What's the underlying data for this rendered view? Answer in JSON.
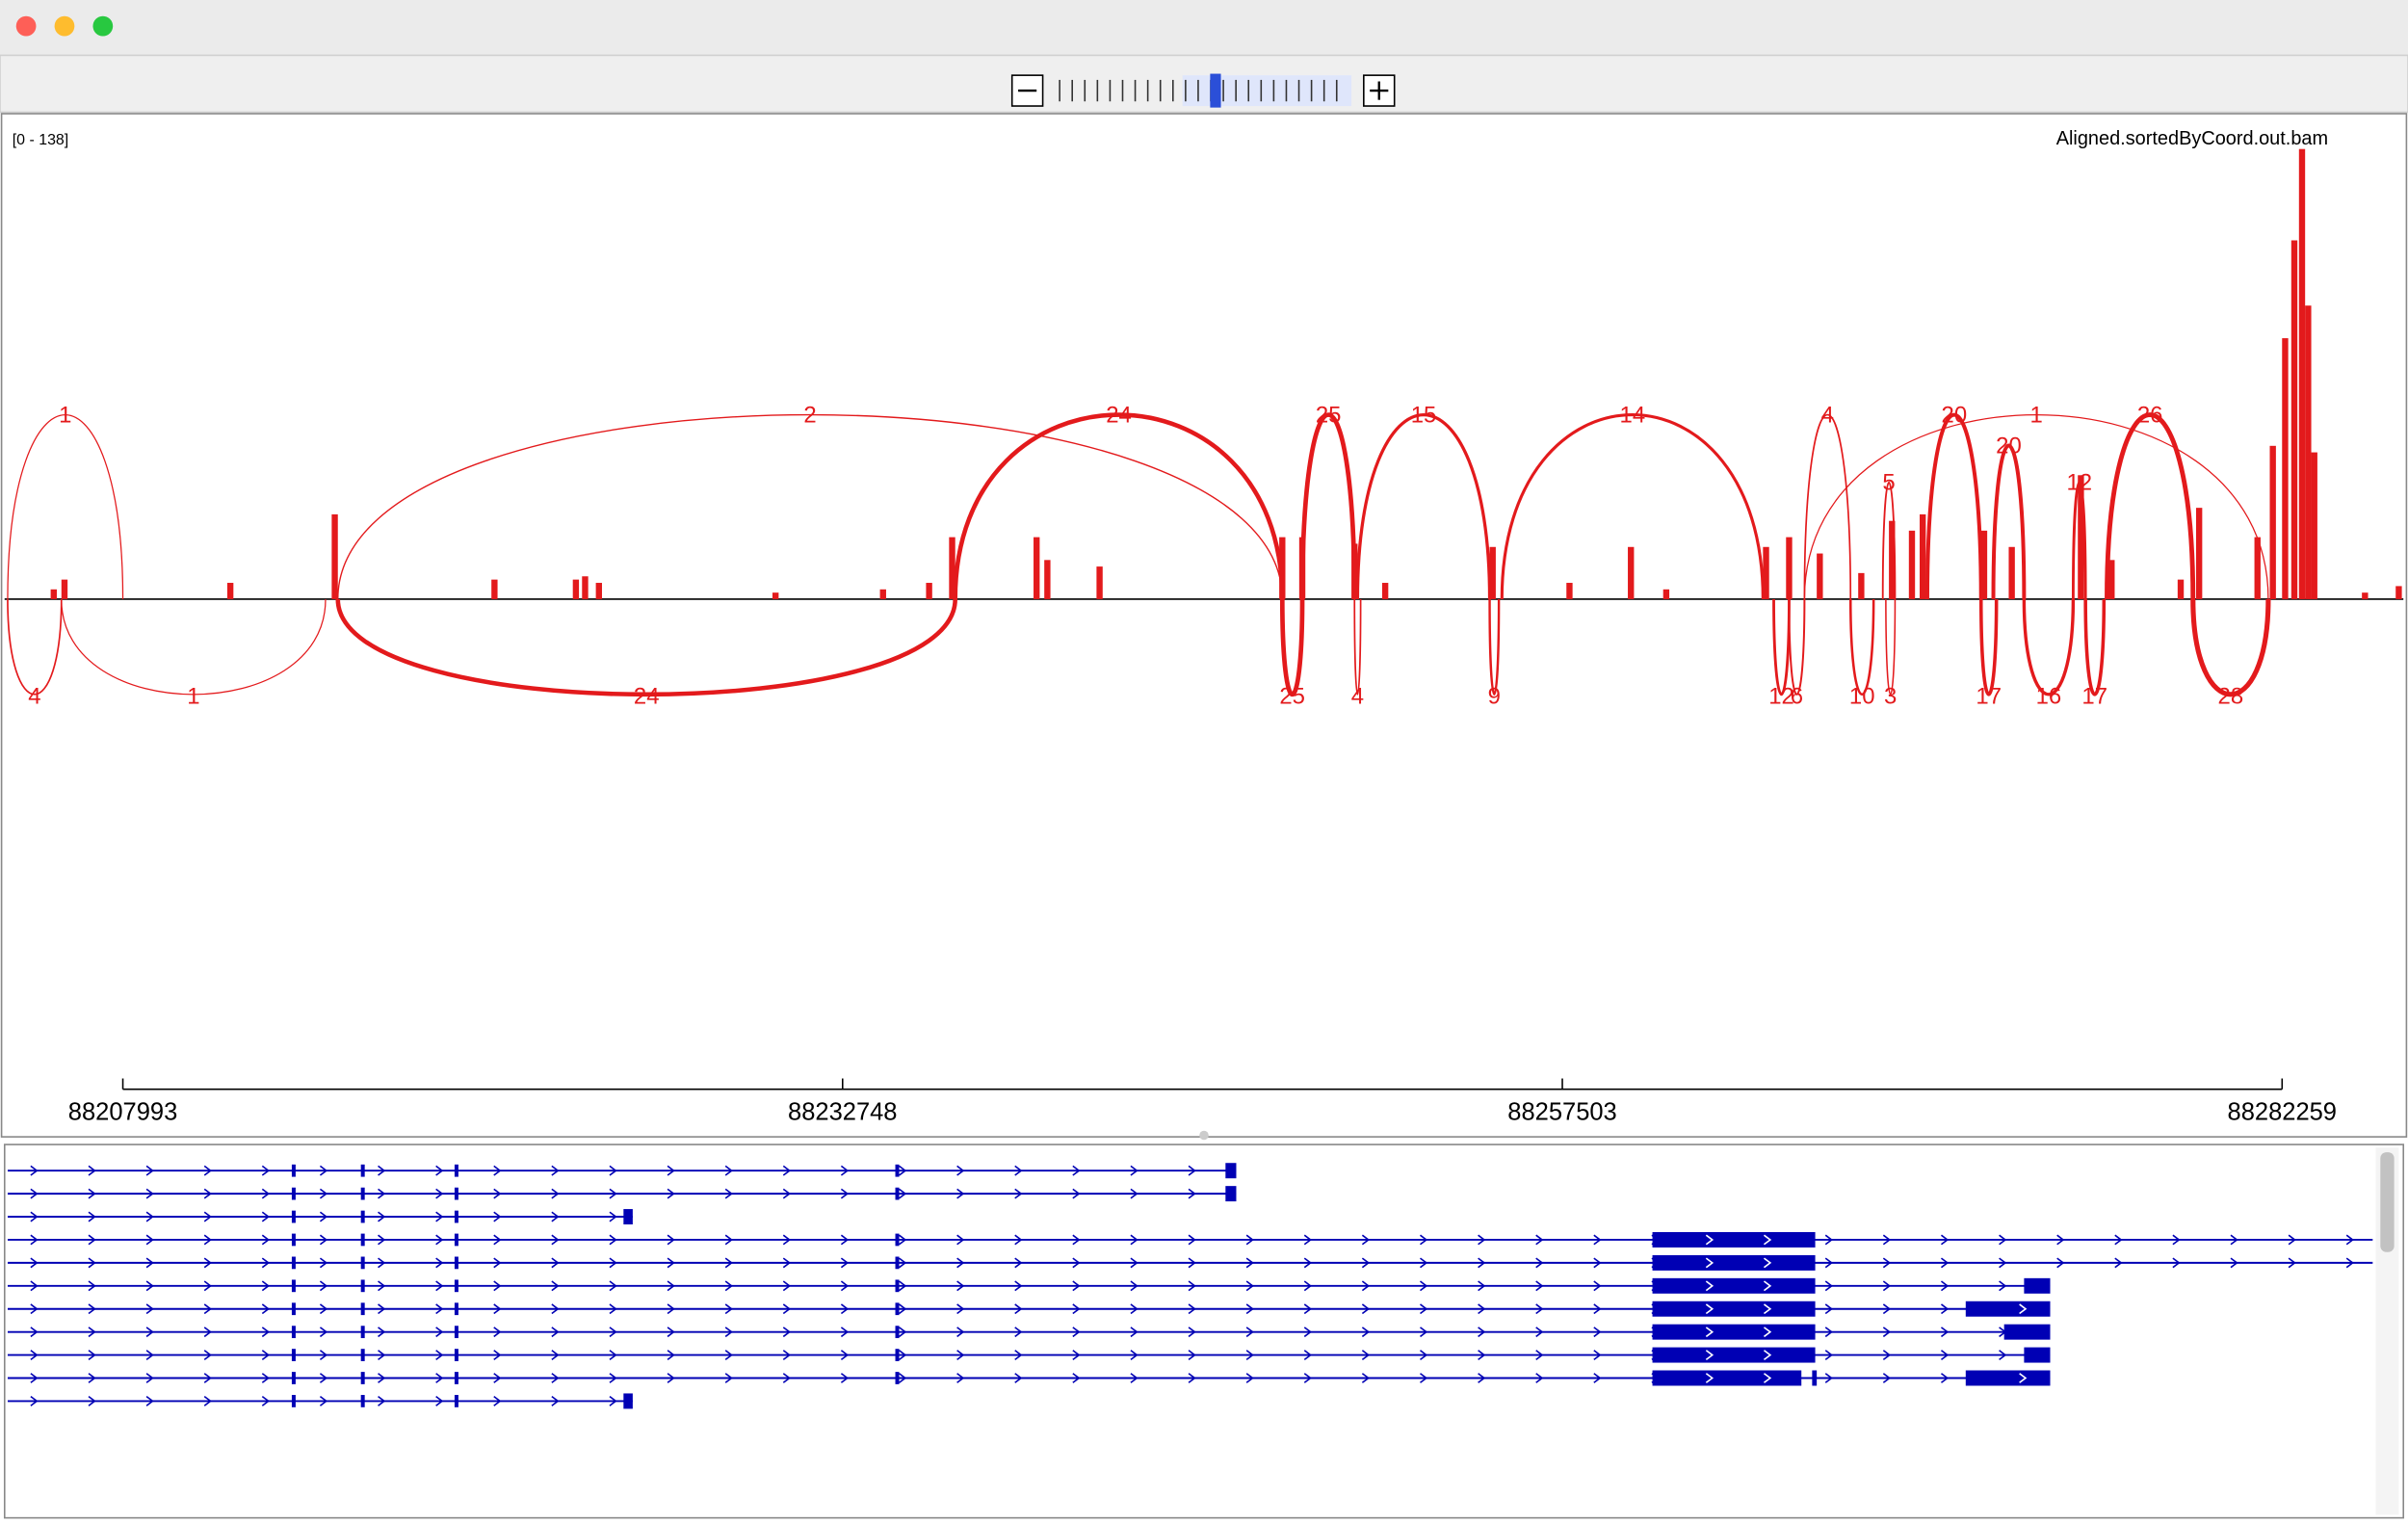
{
  "track": {
    "name": "Aligned.sortedByCoord.out.bam",
    "data_range": "[0 - 138]",
    "ylim": [
      0,
      138
    ],
    "xlim": [
      88203926,
      88286431
    ],
    "color": "#e31a1c",
    "coverage": [
      {
        "position": 88205616,
        "depth": 3
      },
      {
        "position": 88205986,
        "depth": 6
      },
      {
        "position": 88211690,
        "depth": 5
      },
      {
        "position": 88215282,
        "depth": 26
      },
      {
        "position": 88220775,
        "depth": 6
      },
      {
        "position": 88223575,
        "depth": 6
      },
      {
        "position": 88223892,
        "depth": 7
      },
      {
        "position": 88224367,
        "depth": 5
      },
      {
        "position": 88230442,
        "depth": 2
      },
      {
        "position": 88234139,
        "depth": 3
      },
      {
        "position": 88235724,
        "depth": 5
      },
      {
        "position": 88236516,
        "depth": 19
      },
      {
        "position": 88239421,
        "depth": 19
      },
      {
        "position": 88239791,
        "depth": 12
      },
      {
        "position": 88241587,
        "depth": 10
      },
      {
        "position": 88247872,
        "depth": 19
      },
      {
        "position": 88248559,
        "depth": 19
      },
      {
        "position": 88250355,
        "depth": 17
      },
      {
        "position": 88251411,
        "depth": 5
      },
      {
        "position": 88255108,
        "depth": 16
      },
      {
        "position": 88257749,
        "depth": 5
      },
      {
        "position": 88259862,
        "depth": 16
      },
      {
        "position": 88261077,
        "depth": 3
      },
      {
        "position": 88264510,
        "depth": 16
      },
      {
        "position": 88265303,
        "depth": 19
      },
      {
        "position": 88266359,
        "depth": 14
      },
      {
        "position": 88267785,
        "depth": 8
      },
      {
        "position": 88268842,
        "depth": 24
      },
      {
        "position": 88269528,
        "depth": 21
      },
      {
        "position": 88269899,
        "depth": 26
      },
      {
        "position": 88272011,
        "depth": 21
      },
      {
        "position": 88272962,
        "depth": 16
      },
      {
        "position": 88275339,
        "depth": 38
      },
      {
        "position": 88276395,
        "depth": 12
      },
      {
        "position": 88278772,
        "depth": 6
      },
      {
        "position": 88279406,
        "depth": 28
      },
      {
        "position": 88281413,
        "depth": 19
      },
      {
        "position": 88281941,
        "depth": 47
      },
      {
        "position": 88282364,
        "depth": 80
      },
      {
        "position": 88282680,
        "depth": 110
      },
      {
        "position": 88282945,
        "depth": 138
      },
      {
        "position": 88283156,
        "depth": 90
      },
      {
        "position": 88283367,
        "depth": 45
      },
      {
        "position": 88285110,
        "depth": 2
      },
      {
        "position": 88286272,
        "depth": 4
      }
    ],
    "junctions": [
      {
        "start": 88204031,
        "end": 88207993,
        "count": 1,
        "side": "above"
      },
      {
        "start": 88215388,
        "end": 88247872,
        "count": 2,
        "side": "above"
      },
      {
        "start": 88236621,
        "end": 88247872,
        "count": 24,
        "side": "above"
      },
      {
        "start": 88248559,
        "end": 88250355,
        "count": 25,
        "side": "above"
      },
      {
        "start": 88250460,
        "end": 88255003,
        "count": 15,
        "side": "above"
      },
      {
        "start": 88255425,
        "end": 88264405,
        "count": 14,
        "side": "above"
      },
      {
        "start": 88265831,
        "end": 88267416,
        "count": 4,
        "side": "above"
      },
      {
        "start": 88268525,
        "end": 88268947,
        "count": 5,
        "side": "above"
      },
      {
        "start": 88270057,
        "end": 88271905,
        "count": 20,
        "side": "above"
      },
      {
        "start": 88272328,
        "end": 88273384,
        "count": 20,
        "side": "above"
      },
      {
        "start": 88275074,
        "end": 88275497,
        "count": 12,
        "side": "above"
      },
      {
        "start": 88276236,
        "end": 88279194,
        "count": 26,
        "side": "above"
      },
      {
        "start": 88265831,
        "end": 88281783,
        "count": 1,
        "side": "above"
      },
      {
        "start": 88204031,
        "end": 88205880,
        "count": 4,
        "side": "below"
      },
      {
        "start": 88205880,
        "end": 88214965,
        "count": 1,
        "side": "below"
      },
      {
        "start": 88215388,
        "end": 88236621,
        "count": 24,
        "side": "below"
      },
      {
        "start": 88247872,
        "end": 88248559,
        "count": 25,
        "side": "below"
      },
      {
        "start": 88250355,
        "end": 88250566,
        "count": 4,
        "side": "below"
      },
      {
        "start": 88255003,
        "end": 88255320,
        "count": 9,
        "side": "below"
      },
      {
        "start": 88264775,
        "end": 88265303,
        "count": 12,
        "side": "below"
      },
      {
        "start": 88265303,
        "end": 88265831,
        "count": 6,
        "side": "below"
      },
      {
        "start": 88267416,
        "end": 88268208,
        "count": 10,
        "side": "below"
      },
      {
        "start": 88268630,
        "end": 88268947,
        "count": 3,
        "side": "below"
      },
      {
        "start": 88271905,
        "end": 88272433,
        "count": 17,
        "side": "below"
      },
      {
        "start": 88273384,
        "end": 88275074,
        "count": 16,
        "side": "below"
      },
      {
        "start": 88275497,
        "end": 88276131,
        "count": 17,
        "side": "below"
      },
      {
        "start": 88279194,
        "end": 88281783,
        "count": 28,
        "side": "below"
      }
    ]
  },
  "axis": {
    "ticks": [
      88207993,
      88232748,
      88257503,
      88282259
    ]
  },
  "annotation": {
    "color": "#0000b4"
  }
}
